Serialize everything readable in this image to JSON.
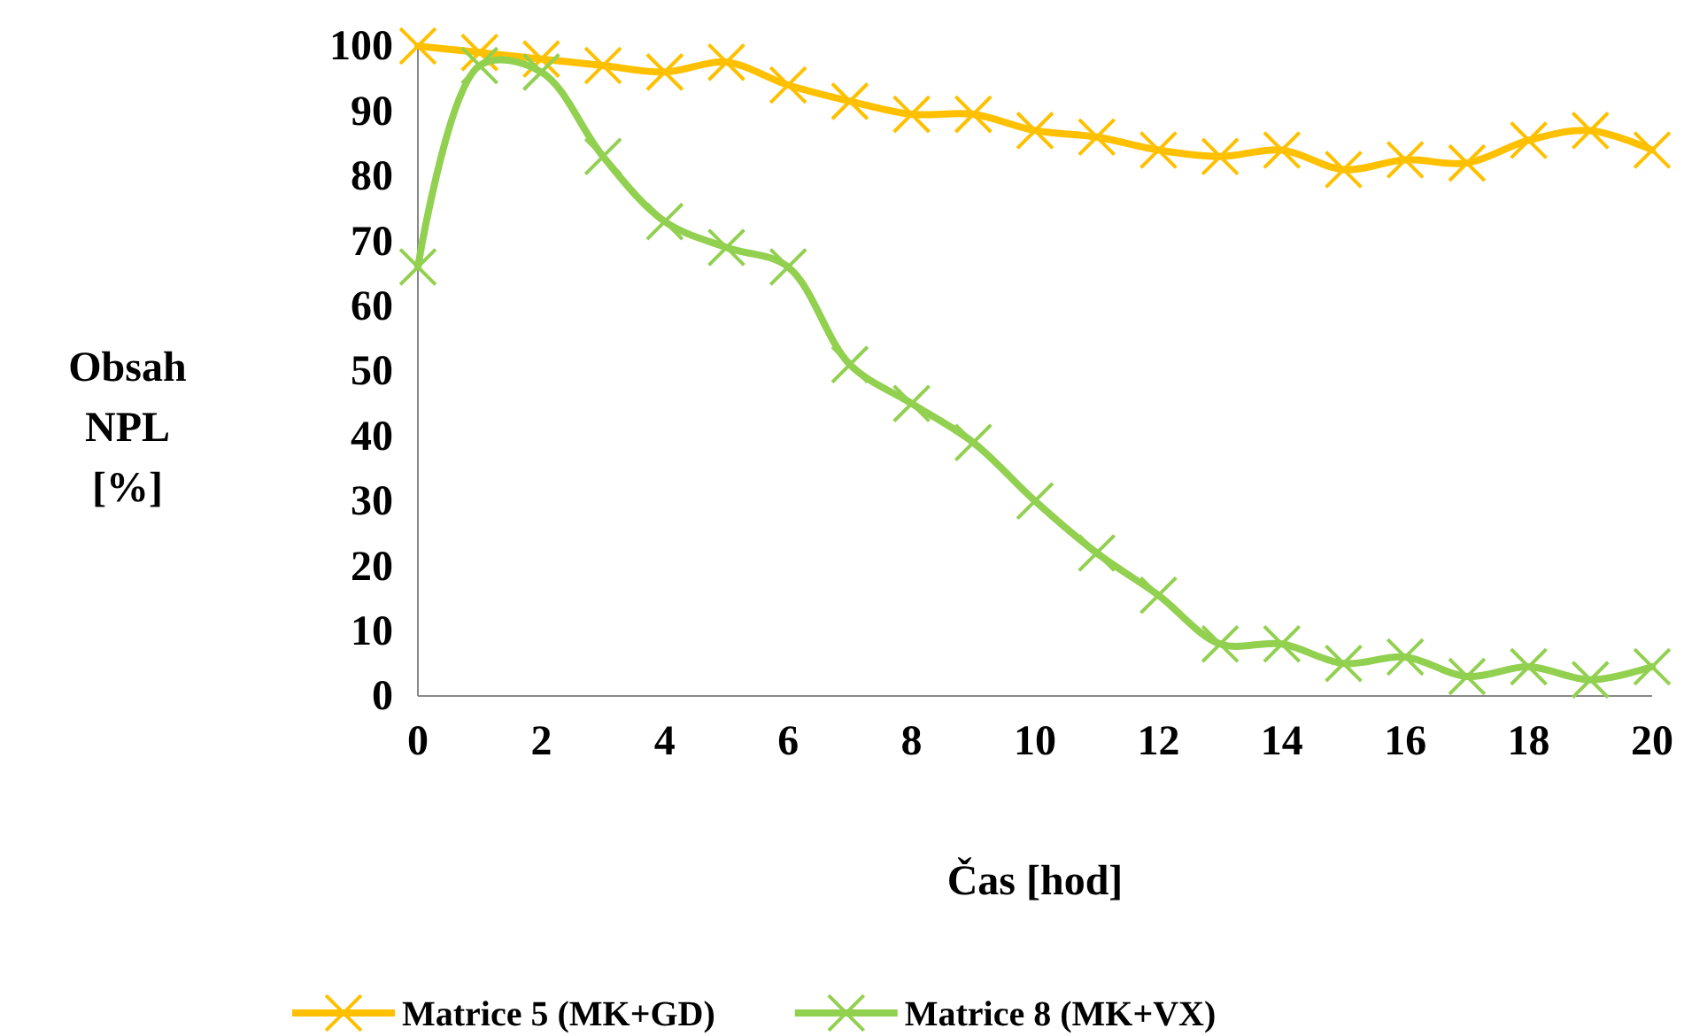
{
  "chart_data": {
    "type": "line",
    "xlabel": "Čas [hod]",
    "ylabel": "Obsah NPL [%]",
    "x": [
      0,
      1,
      2,
      3,
      4,
      5,
      6,
      7,
      8,
      9,
      10,
      11,
      12,
      13,
      14,
      15,
      16,
      17,
      18,
      19,
      20
    ],
    "series": [
      {
        "name": "Matrice 5 (MK+GD)",
        "color": "#ffc000",
        "values": [
          100,
          99,
          98,
          97,
          96,
          97.5,
          94,
          91.5,
          89.5,
          89.5,
          87,
          86,
          84,
          83,
          84,
          81,
          82.5,
          82,
          85.5,
          87,
          84
        ]
      },
      {
        "name": "Matrice 8 (MK+VX)",
        "color": "#92d050",
        "values": [
          66,
          97,
          96,
          83,
          73,
          69,
          66,
          51,
          45,
          39,
          30,
          22,
          15.5,
          8,
          8,
          5,
          6,
          3,
          4.5,
          2.5,
          4.5
        ]
      }
    ],
    "xlim": [
      0,
      20
    ],
    "xticks": [
      0,
      2,
      4,
      6,
      8,
      10,
      12,
      14,
      16,
      18,
      20
    ],
    "ylim": [
      0,
      100
    ],
    "yticks": [
      0,
      10,
      20,
      30,
      40,
      50,
      60,
      70,
      80,
      90,
      100
    ],
    "grid": false,
    "legend": "bottom",
    "marker": "cross",
    "line_style": "solid"
  }
}
